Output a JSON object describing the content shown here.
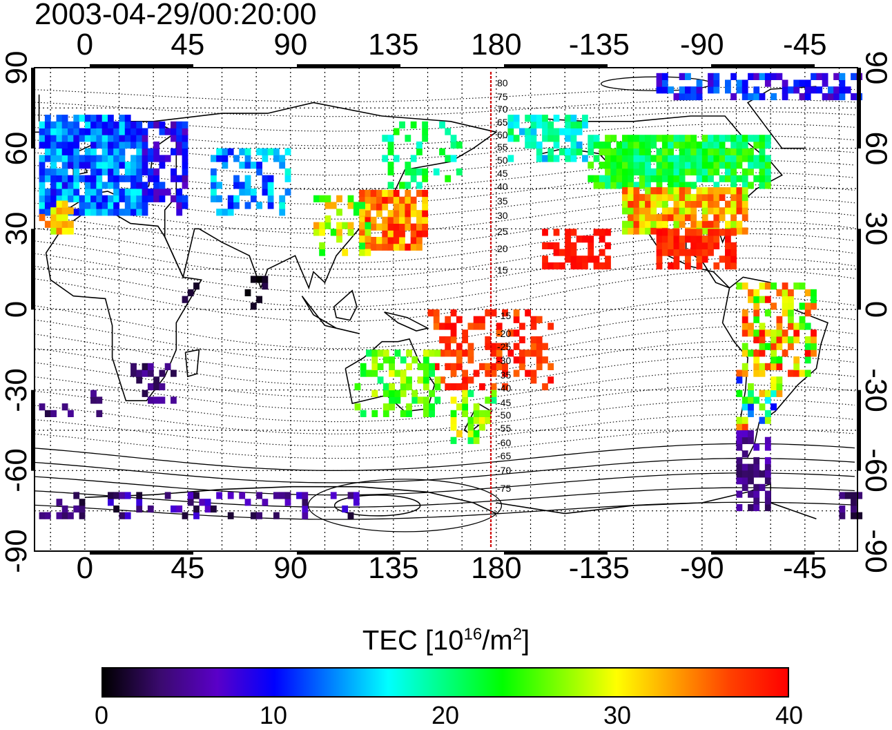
{
  "title": "2003-04-29/00:20:00",
  "x_ticks_top": [
    "0",
    "45",
    "90",
    "135",
    "180",
    "-135",
    "-90",
    "-45"
  ],
  "x_ticks_bottom": [
    "0",
    "45",
    "90",
    "135",
    "180",
    "-135",
    "-90",
    "-45"
  ],
  "y_ticks_left": [
    "90",
    "60",
    "30",
    "0",
    "-30",
    "-60",
    "-90"
  ],
  "y_ticks_right": [
    "90",
    "60",
    "30",
    "0",
    "-30",
    "-60",
    "-90"
  ],
  "meridian_labels_north": [
    "80",
    "75",
    "70",
    "65",
    "60",
    "55",
    "50",
    "45",
    "40",
    "35",
    "30",
    "25",
    "20",
    "15"
  ],
  "meridian_labels_south": [
    "-15",
    "-20",
    "-25",
    "-30",
    "-35",
    "-40",
    "-45",
    "-50",
    "-55",
    "-60",
    "-65",
    "-70",
    "-75"
  ],
  "colorbar": {
    "label_main": "TEC  [10",
    "label_sup1": "16",
    "label_mid": "/m",
    "label_sup2": "2",
    "label_end": "]",
    "ticks": [
      "0",
      "10",
      "20",
      "30",
      "40"
    ],
    "colors": [
      "#000000",
      "#3a0a6e",
      "#5a00c8",
      "#0000ff",
      "#0080ff",
      "#00ffff",
      "#00ff80",
      "#00ff00",
      "#80ff00",
      "#ffff00",
      "#ffa000",
      "#ff4000",
      "#ff0000"
    ]
  },
  "map": {
    "projection": "cylindrical, lon -22 to 338, lat -90 to 90",
    "reference_meridian_color": "#d00000",
    "tec_range": [
      0,
      40
    ]
  }
}
